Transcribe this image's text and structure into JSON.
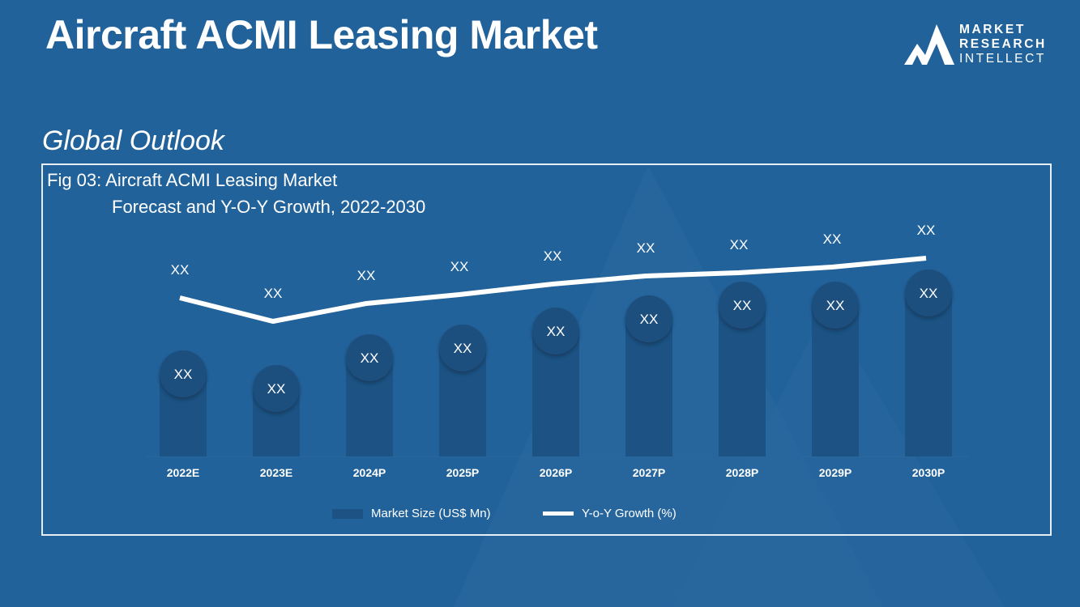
{
  "header": {
    "title": "Aircraft ACMI Leasing Market",
    "subtitle": "Global Outlook"
  },
  "logo": {
    "line1": "MARKET",
    "line2": "RESEARCH",
    "line3": "INTELLECT"
  },
  "chart_data": {
    "type": "bar",
    "title_line1": "Fig 03: Aircraft ACMI Leasing Market",
    "title_line2": "Forecast and Y-O-Y Growth, 2022-2030",
    "categories": [
      "2022E",
      "2023E",
      "2024P",
      "2025P",
      "2026P",
      "2027P",
      "2028P",
      "2029P",
      "2030P"
    ],
    "series": [
      {
        "name": "Market Size (US$ Mn)",
        "type": "bar",
        "values": [
          102,
          84,
          122,
          134,
          155,
          170,
          187,
          187,
          202
        ],
        "labels": [
          "XX",
          "XX",
          "XX",
          "XX",
          "XX",
          "XX",
          "XX",
          "XX",
          "XX"
        ]
      },
      {
        "name": "Y-o-Y Growth (%)",
        "type": "line",
        "values": [
          196,
          167,
          189,
          200,
          213,
          223,
          227,
          234,
          245
        ],
        "labels": [
          "XX",
          "XX",
          "XX",
          "XX",
          "XX",
          "XX",
          "XX",
          "XX",
          "XX"
        ]
      }
    ],
    "ylim": [
      0,
      300
    ],
    "grid": false,
    "legend": "bottom-center",
    "colors": {
      "bar": "#1c5384",
      "bar_cap": "#1d4f7e",
      "line": "#ffffff"
    }
  }
}
